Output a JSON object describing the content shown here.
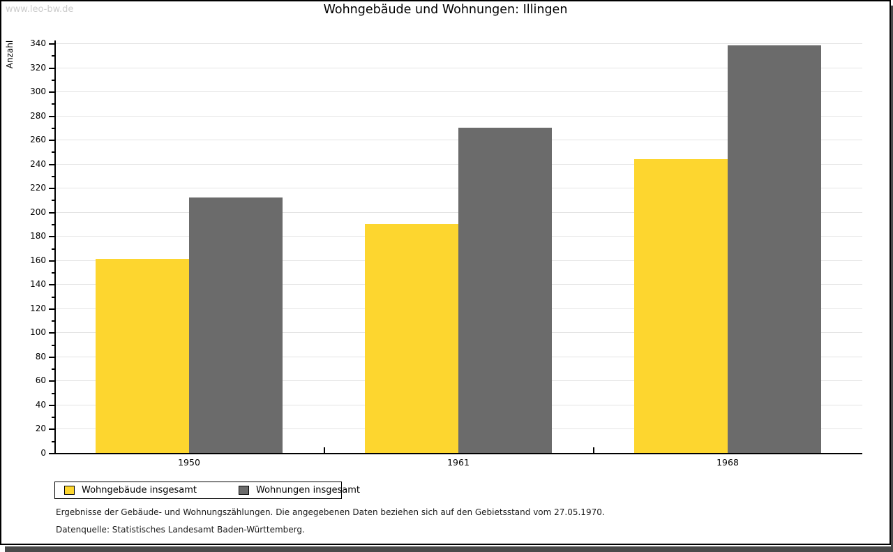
{
  "page": {
    "watermark": "www.leo-bw.de",
    "colors": {
      "border": "#000000",
      "shadow": "#4a4a4a",
      "watermark_text": "#cccccc",
      "grid": "#e4e4e4"
    },
    "notes": {
      "line1": "Ergebnisse der Gebäude- und Wohnungszählungen. Die angegebenen Daten beziehen sich auf den Gebietsstand vom 27.05.1970.",
      "line2": "Datenquelle: Statistisches Landesamt Baden-Württemberg."
    }
  },
  "chart_data": {
    "type": "bar",
    "title": "Wohngebäude und Wohnungen: Illingen",
    "xlabel": "",
    "ylabel": "Anzahl",
    "categories": [
      "1950",
      "1961",
      "1968"
    ],
    "series": [
      {
        "name": "Wohngebäude insgesamt",
        "color": "#FDD62F",
        "values": [
          161,
          190,
          244
        ]
      },
      {
        "name": "Wohnungen insgesamt",
        "color": "#6B6B6B",
        "values": [
          212,
          270,
          338
        ]
      }
    ],
    "ylim": [
      0,
      340
    ],
    "ytick_step": 20,
    "yminor_step": 10,
    "yticks": [
      0,
      20,
      40,
      60,
      80,
      100,
      120,
      140,
      160,
      180,
      200,
      220,
      240,
      260,
      280,
      300,
      320,
      340
    ],
    "grid": true,
    "legend_position": "bottom-left"
  }
}
